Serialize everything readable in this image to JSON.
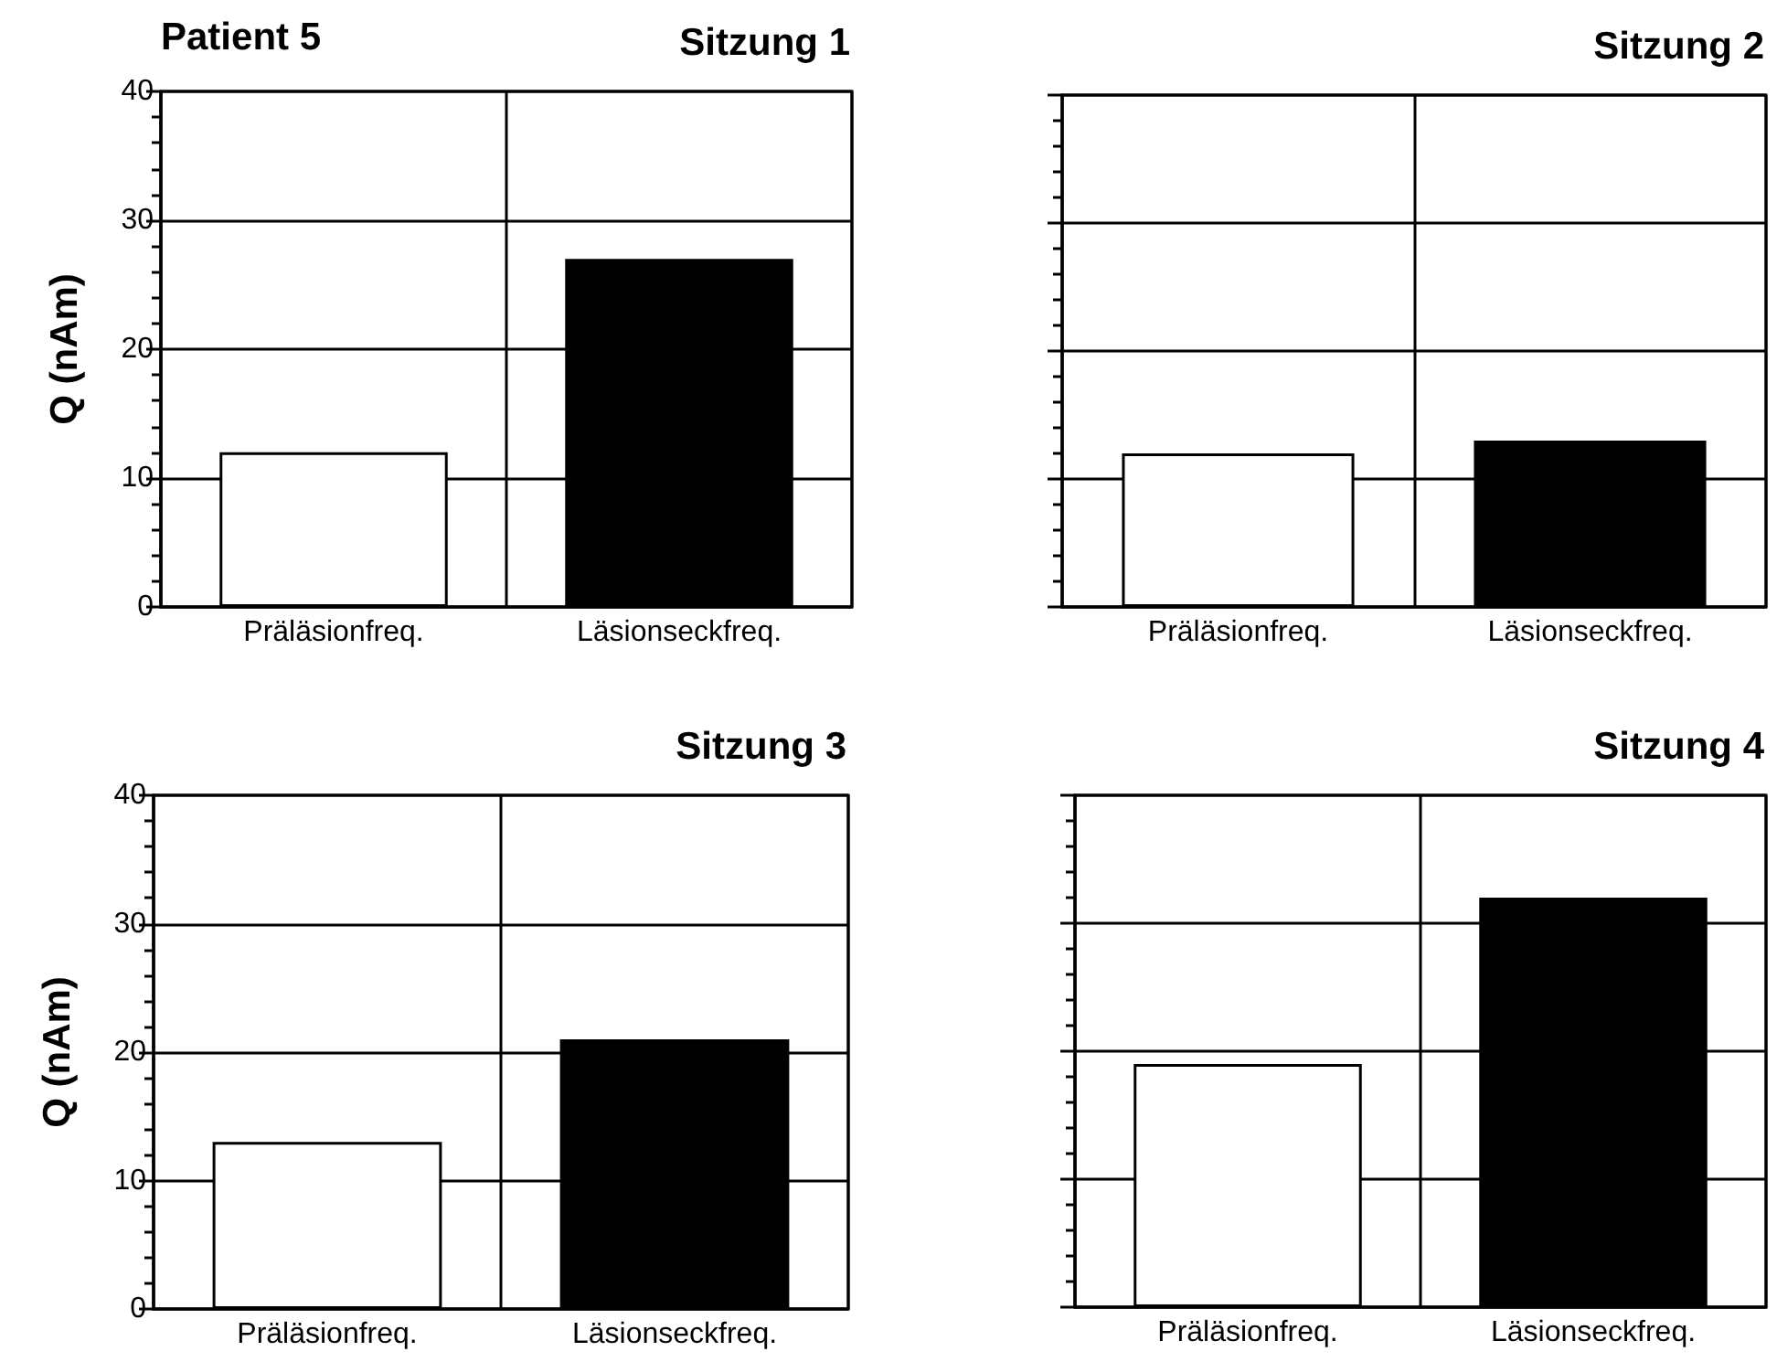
{
  "chart_data": [
    {
      "type": "bar",
      "title": "Sitzung 1",
      "ylabel": "Q (nAm)",
      "annotations": [
        "Patient 5"
      ],
      "categories": [
        "Präläsionfreq.",
        "Läsionseckfreq."
      ],
      "values": [
        12,
        27
      ],
      "colors": [
        "#ffffff",
        "#000000"
      ],
      "ylim": [
        0,
        40
      ],
      "yticks": [
        0,
        10,
        20,
        30,
        40
      ],
      "grid": true
    },
    {
      "type": "bar",
      "title": "Sitzung 2",
      "categories": [
        "Präläsionfreq.",
        "Läsionseckfreq."
      ],
      "values": [
        12,
        13
      ],
      "colors": [
        "#ffffff",
        "#000000"
      ],
      "ylim": [
        0,
        40
      ],
      "yticks": [
        0,
        10,
        20,
        30,
        40
      ],
      "grid": true,
      "tick_labels": "x"
    },
    {
      "type": "bar",
      "title": "Sitzung 3",
      "ylabel": "Q (nAm)",
      "categories": [
        "Präläsionfreq.",
        "Läsionseckfreq."
      ],
      "values": [
        13,
        21
      ],
      "colors": [
        "#ffffff",
        "#000000"
      ],
      "ylim": [
        0,
        40
      ],
      "yticks": [
        0,
        10,
        20,
        30,
        40
      ],
      "grid": true
    },
    {
      "type": "bar",
      "title": "Sitzung 4",
      "categories": [
        "Präläsionfreq.",
        "Läsionseckfreq."
      ],
      "values": [
        19,
        32
      ],
      "colors": [
        "#ffffff",
        "#000000"
      ],
      "ylim": [
        0,
        40
      ],
      "yticks": [
        0,
        10,
        20,
        30,
        40
      ],
      "grid": true,
      "tick_labels": "x"
    }
  ]
}
